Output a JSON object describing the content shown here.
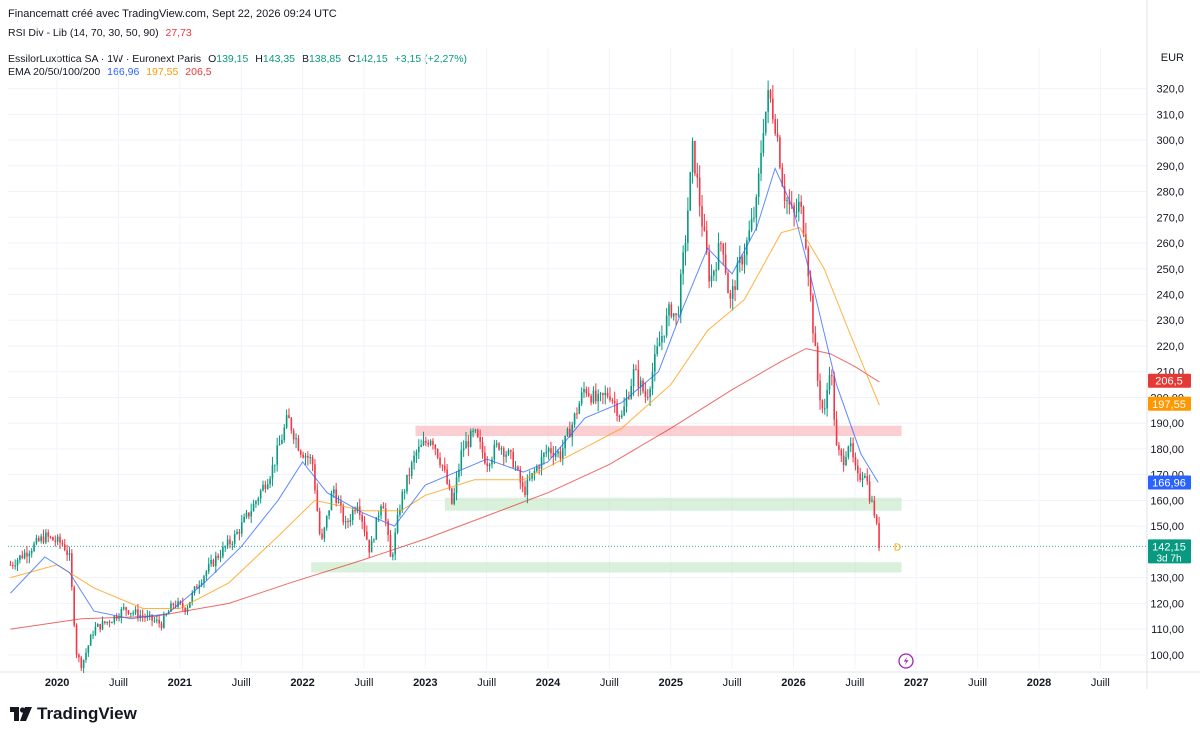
{
  "header": {
    "text": "Financematt créé avec TradingView.com, Sept 22, 2026 09:24 UTC"
  },
  "rsi_legend": {
    "label": "RSI Div - Lib (14, 70, 30, 50, 90)",
    "value": "27,73"
  },
  "symbol_legend": {
    "name": "EssilorLuxottica SA · 1W · Euronext Paris",
    "o_label": "O",
    "o": "139,15",
    "h_label": "H",
    "h": "143,35",
    "b_label": "B",
    "b": "138,85",
    "c_label": "C",
    "c": "142,15",
    "change": "+3,15 (+2,27%)"
  },
  "ema_legend": {
    "label": "EMA 20/50/100/200",
    "v1": "166,96",
    "v2": "197,55",
    "v3": "206,5"
  },
  "currency": "EUR",
  "branding": {
    "logo_text": "TradingView"
  },
  "colors": {
    "up": "#089981",
    "down": "#f23645",
    "ema20": "#2962ff",
    "ema50": "#ff9800",
    "ema200": "#e53935",
    "resist": "#f9b4b9",
    "support": "#bfe6c2",
    "price": "#089981"
  },
  "chart_data": {
    "type": "candlestick",
    "title": "",
    "x_ticks": [
      {
        "label": "2020",
        "t": 2020.0,
        "bold": true
      },
      {
        "label": "Juill",
        "t": 2020.5,
        "bold": false
      },
      {
        "label": "2021",
        "t": 2021.0,
        "bold": true
      },
      {
        "label": "Juill",
        "t": 2021.5,
        "bold": false
      },
      {
        "label": "2022",
        "t": 2022.0,
        "bold": true
      },
      {
        "label": "Juill",
        "t": 2022.5,
        "bold": false
      },
      {
        "label": "2023",
        "t": 2023.0,
        "bold": true
      },
      {
        "label": "Juill",
        "t": 2023.5,
        "bold": false
      },
      {
        "label": "2024",
        "t": 2024.0,
        "bold": true
      },
      {
        "label": "Juill",
        "t": 2024.5,
        "bold": false
      },
      {
        "label": "2025",
        "t": 2025.0,
        "bold": true
      },
      {
        "label": "Juill",
        "t": 2025.5,
        "bold": false
      },
      {
        "label": "2026",
        "t": 2026.0,
        "bold": true
      },
      {
        "label": "Juill",
        "t": 2026.5,
        "bold": false
      },
      {
        "label": "2027",
        "t": 2027.0,
        "bold": true
      },
      {
        "label": "Juill",
        "t": 2027.5,
        "bold": false
      },
      {
        "label": "2028",
        "t": 2028.0,
        "bold": true
      },
      {
        "label": "Juill",
        "t": 2028.5,
        "bold": false
      }
    ],
    "y_ticks": [
      "320,0",
      "310,0",
      "300,0",
      "290,0",
      "280,0",
      "270,0",
      "260,0",
      "250,0",
      "240,0",
      "230,0",
      "220,0",
      "210,0",
      "200,00",
      "190,00",
      "180,00",
      "170,00",
      "160,00",
      "150,00",
      "130,00",
      "120,00",
      "110,00",
      "100,00"
    ],
    "y_tick_values": [
      320,
      310,
      300,
      290,
      280,
      270,
      260,
      250,
      240,
      230,
      220,
      210,
      200,
      190,
      180,
      170,
      160,
      150,
      130,
      120,
      110,
      100
    ],
    "x_range": [
      2019.6,
      2028.88
    ],
    "y_range": [
      94.5,
      328.0
    ],
    "price_anchors": [
      [
        2019.62,
        135
      ],
      [
        2019.75,
        140
      ],
      [
        2019.9,
        146
      ],
      [
        2020.05,
        143
      ],
      [
        2020.1,
        138
      ],
      [
        2020.16,
        100
      ],
      [
        2020.2,
        96
      ],
      [
        2020.3,
        110
      ],
      [
        2020.45,
        114
      ],
      [
        2020.55,
        118
      ],
      [
        2020.7,
        115
      ],
      [
        2020.85,
        112
      ],
      [
        2020.95,
        120
      ],
      [
        2021.05,
        118
      ],
      [
        2021.15,
        128
      ],
      [
        2021.3,
        138
      ],
      [
        2021.45,
        146
      ],
      [
        2021.6,
        158
      ],
      [
        2021.75,
        172
      ],
      [
        2021.88,
        192
      ],
      [
        2021.98,
        180
      ],
      [
        2022.08,
        175
      ],
      [
        2022.15,
        142
      ],
      [
        2022.25,
        165
      ],
      [
        2022.35,
        150
      ],
      [
        2022.45,
        160
      ],
      [
        2022.55,
        140
      ],
      [
        2022.65,
        162
      ],
      [
        2022.72,
        136
      ],
      [
        2022.8,
        160
      ],
      [
        2022.92,
        178
      ],
      [
        2023.05,
        185
      ],
      [
        2023.15,
        172
      ],
      [
        2023.22,
        158
      ],
      [
        2023.3,
        180
      ],
      [
        2023.4,
        186
      ],
      [
        2023.5,
        175
      ],
      [
        2023.6,
        182
      ],
      [
        2023.72,
        175
      ],
      [
        2023.8,
        163
      ],
      [
        2023.9,
        172
      ],
      [
        2024.0,
        180
      ],
      [
        2024.1,
        178
      ],
      [
        2024.2,
        190
      ],
      [
        2024.3,
        204
      ],
      [
        2024.4,
        198
      ],
      [
        2024.5,
        202
      ],
      [
        2024.6,
        192
      ],
      [
        2024.7,
        210
      ],
      [
        2024.8,
        200
      ],
      [
        2024.9,
        220
      ],
      [
        2025.0,
        235
      ],
      [
        2025.05,
        230
      ],
      [
        2025.12,
        262
      ],
      [
        2025.18,
        297
      ],
      [
        2025.25,
        270
      ],
      [
        2025.32,
        245
      ],
      [
        2025.42,
        262
      ],
      [
        2025.48,
        236
      ],
      [
        2025.55,
        250
      ],
      [
        2025.62,
        260
      ],
      [
        2025.7,
        275
      ],
      [
        2025.75,
        305
      ],
      [
        2025.8,
        318
      ],
      [
        2025.86,
        305
      ],
      [
        2025.92,
        280
      ],
      [
        2026.0,
        270
      ],
      [
        2026.05,
        275
      ],
      [
        2026.1,
        262
      ],
      [
        2026.15,
        232
      ],
      [
        2026.2,
        205
      ],
      [
        2026.25,
        192
      ],
      [
        2026.3,
        215
      ],
      [
        2026.35,
        180
      ],
      [
        2026.4,
        175
      ],
      [
        2026.45,
        183
      ],
      [
        2026.52,
        168
      ],
      [
        2026.58,
        172
      ],
      [
        2026.62,
        162
      ],
      [
        2026.66,
        155
      ],
      [
        2026.7,
        142
      ]
    ],
    "ema20": [
      [
        2019.62,
        124
      ],
      [
        2019.9,
        138
      ],
      [
        2020.1,
        132
      ],
      [
        2020.3,
        117
      ],
      [
        2020.6,
        114
      ],
      [
        2020.9,
        116
      ],
      [
        2021.2,
        128
      ],
      [
        2021.5,
        142
      ],
      [
        2021.8,
        160
      ],
      [
        2022.0,
        175
      ],
      [
        2022.2,
        163
      ],
      [
        2022.5,
        155
      ],
      [
        2022.75,
        150
      ],
      [
        2023.0,
        166
      ],
      [
        2023.2,
        170
      ],
      [
        2023.5,
        176
      ],
      [
        2023.8,
        171
      ],
      [
        2024.0,
        175
      ],
      [
        2024.3,
        192
      ],
      [
        2024.6,
        198
      ],
      [
        2024.9,
        210
      ],
      [
        2025.1,
        235
      ],
      [
        2025.3,
        258
      ],
      [
        2025.5,
        248
      ],
      [
        2025.7,
        266
      ],
      [
        2025.85,
        289
      ],
      [
        2026.0,
        273
      ],
      [
        2026.15,
        245
      ],
      [
        2026.35,
        205
      ],
      [
        2026.55,
        178
      ],
      [
        2026.69,
        167
      ]
    ],
    "ema50": [
      [
        2019.62,
        130
      ],
      [
        2020.0,
        135
      ],
      [
        2020.3,
        126
      ],
      [
        2020.7,
        118
      ],
      [
        2021.0,
        118
      ],
      [
        2021.4,
        128
      ],
      [
        2021.8,
        146
      ],
      [
        2022.1,
        160
      ],
      [
        2022.5,
        156
      ],
      [
        2022.8,
        156
      ],
      [
        2023.0,
        162
      ],
      [
        2023.4,
        168
      ],
      [
        2023.8,
        168
      ],
      [
        2024.2,
        178
      ],
      [
        2024.6,
        188
      ],
      [
        2025.0,
        205
      ],
      [
        2025.3,
        226
      ],
      [
        2025.6,
        238
      ],
      [
        2025.9,
        264
      ],
      [
        2026.05,
        266
      ],
      [
        2026.25,
        250
      ],
      [
        2026.45,
        226
      ],
      [
        2026.7,
        197
      ]
    ],
    "ema200": [
      [
        2019.62,
        110
      ],
      [
        2020.2,
        114
      ],
      [
        2020.8,
        115
      ],
      [
        2021.4,
        120
      ],
      [
        2021.9,
        128
      ],
      [
        2022.5,
        137
      ],
      [
        2023.0,
        145
      ],
      [
        2023.5,
        154
      ],
      [
        2024.0,
        163
      ],
      [
        2024.5,
        174
      ],
      [
        2025.0,
        188
      ],
      [
        2025.5,
        203
      ],
      [
        2025.9,
        214
      ],
      [
        2026.1,
        219
      ],
      [
        2026.3,
        217
      ],
      [
        2026.5,
        212
      ],
      [
        2026.7,
        206
      ]
    ],
    "zones": [
      {
        "type": "resistance",
        "t0": 2022.92,
        "t1": 2026.88,
        "y0": 185,
        "y1": 189
      },
      {
        "type": "support",
        "t0": 2023.16,
        "t1": 2026.88,
        "y0": 156,
        "y1": 161
      },
      {
        "type": "support",
        "t0": 2022.07,
        "t1": 2026.88,
        "y0": 132,
        "y1": 136
      }
    ],
    "series_end_labels": [
      {
        "name": "EMA 200",
        "value": 206.5,
        "text": "206,5",
        "color": "#e53935"
      },
      {
        "name": "EMA 50",
        "value": 197.55,
        "text": "197,55",
        "color": "#ff9800"
      },
      {
        "name": "EMA 20",
        "value": 166.96,
        "text": "166,96",
        "color": "#2962ff"
      },
      {
        "name": "Last",
        "value": 142.15,
        "text": "142,15",
        "sub": "3d 7h",
        "color": "#089981"
      }
    ],
    "last_price": 142.15,
    "d_marker": {
      "text": "D",
      "t": 2026.72,
      "value": 142
    }
  }
}
